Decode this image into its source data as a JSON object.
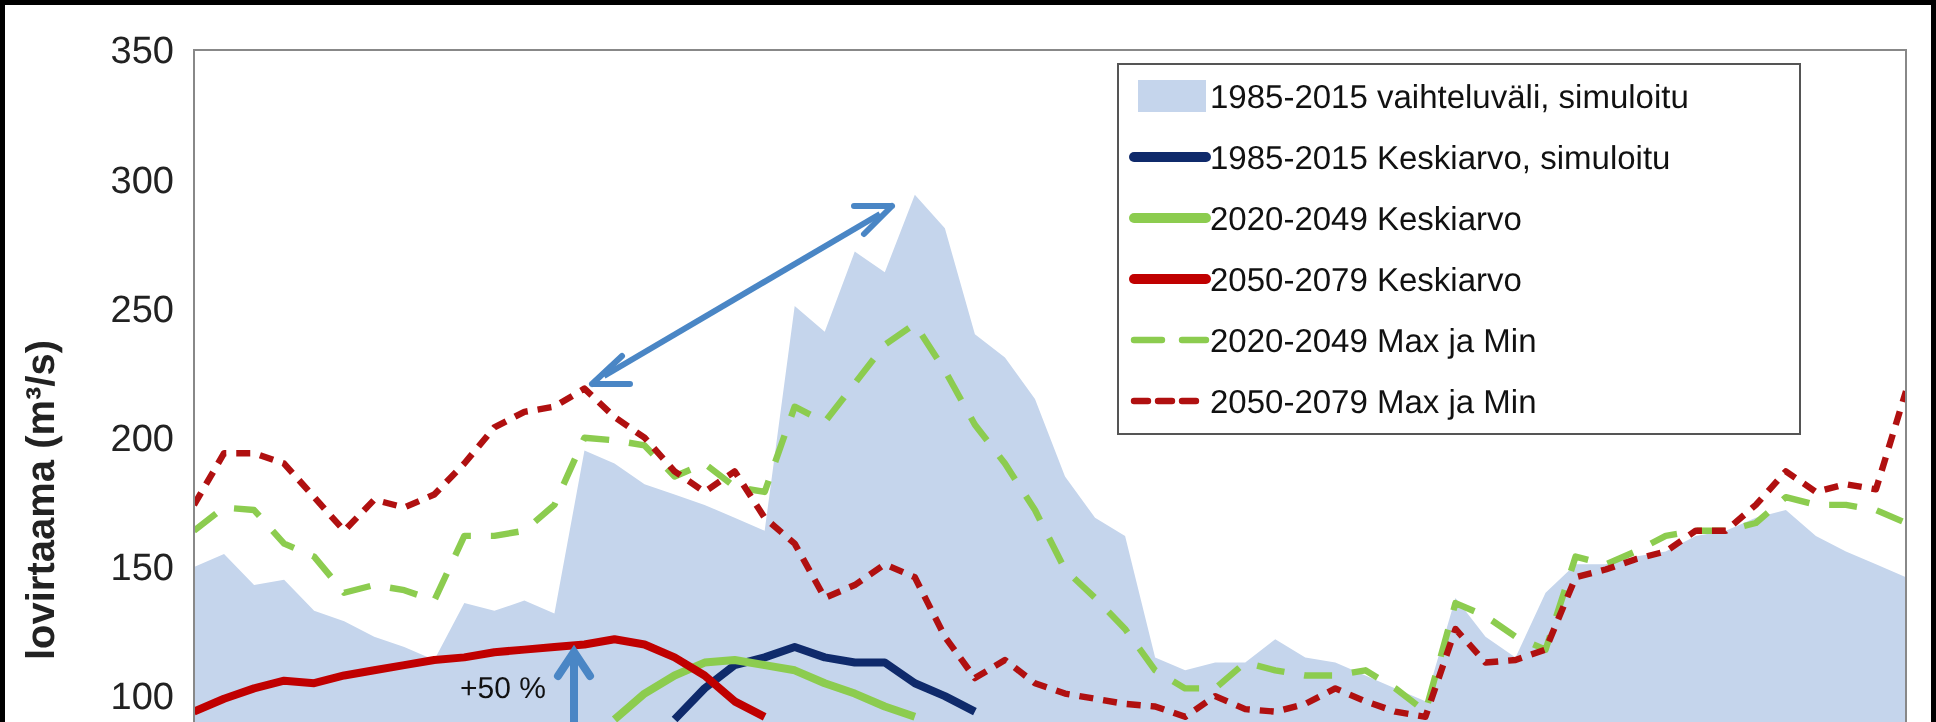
{
  "chart_data": {
    "type": "line",
    "ylabel": "lovirtaama (m³/s)",
    "categories": [
      null,
      null,
      null,
      null,
      null,
      null,
      null,
      null,
      null,
      null,
      null,
      null,
      null,
      null,
      null,
      null,
      null,
      null,
      null,
      null,
      null,
      null,
      null,
      null,
      null,
      null,
      null,
      null,
      null,
      null,
      null,
      null,
      null,
      null,
      null,
      null,
      null,
      null,
      null,
      null,
      null,
      null,
      null,
      null,
      null,
      null,
      null,
      null,
      null,
      null,
      null,
      null,
      null,
      null,
      null,
      null,
      null,
      null
    ],
    "ylim": [
      90,
      350
    ],
    "yticks": [
      100,
      150,
      200,
      250,
      300,
      350
    ],
    "grid": false,
    "legend": "top right",
    "annotations": [
      "+50 %"
    ],
    "series": [
      {
        "name": "1985-2015 vaihteluväli, simuloitu",
        "type": "area",
        "color": "#c5d5ec",
        "values": [
          150,
          155,
          143,
          145,
          133,
          129,
          123,
          119,
          114,
          136,
          133,
          137,
          132,
          195,
          190,
          182,
          178,
          174,
          169,
          164,
          251,
          241,
          272,
          264,
          294,
          281,
          240,
          231,
          215,
          185,
          169,
          162,
          115,
          110,
          113,
          113,
          122,
          115,
          113,
          108,
          103,
          98,
          138,
          123,
          115,
          140,
          151,
          151,
          154,
          156,
          162,
          164,
          169,
          172,
          162,
          156,
          151,
          146
        ]
      },
      {
        "name": "1985-2015 Keskiarvo, simuloitu",
        "line_style": "solid",
        "color": "#0f2a6b",
        "values": [
          null,
          null,
          null,
          null,
          null,
          null,
          null,
          null,
          null,
          null,
          null,
          null,
          null,
          null,
          null,
          null,
          91,
          103,
          112,
          115,
          119,
          115,
          113,
          113,
          105,
          100,
          94,
          null,
          null,
          null,
          null,
          null,
          null,
          null,
          null,
          null,
          null,
          null,
          null,
          null,
          null,
          null,
          null,
          null,
          null,
          null,
          null,
          null,
          null,
          null,
          null,
          null,
          null,
          null,
          null,
          null,
          null,
          null
        ]
      },
      {
        "name": "2020-2049 Keskiarvo",
        "line_style": "solid",
        "color": "#8ccc4f",
        "values": [
          null,
          null,
          null,
          null,
          null,
          null,
          null,
          null,
          null,
          null,
          null,
          null,
          null,
          null,
          91,
          101,
          108,
          113,
          114,
          112,
          110,
          105,
          101,
          96,
          92,
          null,
          null,
          null,
          null,
          null,
          null,
          null,
          null,
          null,
          null,
          null,
          null,
          null,
          null,
          null,
          null,
          null,
          null,
          null,
          null,
          null,
          null,
          null,
          null,
          null,
          null,
          null,
          null,
          null,
          null,
          null,
          null,
          null
        ]
      },
      {
        "name": "2050-2079 Keskiarvo",
        "line_style": "solid",
        "color": "#c00000",
        "values": [
          94,
          99,
          103,
          106,
          105,
          108,
          110,
          112,
          114,
          115,
          117,
          118,
          119,
          120,
          122,
          120,
          115,
          108,
          98,
          92,
          null,
          null,
          null,
          null,
          null,
          null,
          null,
          null,
          null,
          null,
          null,
          null,
          null,
          null,
          null,
          null,
          null,
          null,
          null,
          null,
          null,
          null,
          null,
          null,
          null,
          null,
          null,
          null,
          null,
          null,
          null,
          null,
          null,
          null,
          null,
          null,
          null,
          null
        ]
      },
      {
        "name": "2020-2049 Max ja Min",
        "line_style": "dashed",
        "color": "#8ccc4f",
        "values": [
          164,
          173,
          172,
          159,
          154,
          140,
          143,
          141,
          137,
          162,
          162,
          164,
          174,
          200,
          199,
          197,
          185,
          190,
          181,
          179,
          212,
          206,
          221,
          236,
          244,
          226,
          205,
          190,
          172,
          149,
          138,
          126,
          110,
          103,
          103,
          113,
          110,
          108,
          108,
          110,
          103,
          94,
          136,
          131,
          123,
          118,
          154,
          151,
          156,
          162,
          164,
          164,
          167,
          177,
          174,
          174,
          172,
          167
        ]
      },
      {
        "name": "2050-2079 Max ja Min",
        "line_style": "dotted",
        "color": "#b01010",
        "values": [
          174,
          194,
          194,
          190,
          177,
          164,
          176,
          173,
          178,
          190,
          204,
          210,
          212,
          219,
          208,
          200,
          187,
          179,
          187,
          169,
          159,
          138,
          143,
          151,
          146,
          123,
          107,
          114,
          105,
          101,
          99,
          97,
          96,
          92,
          100,
          95,
          94,
          97,
          103,
          98,
          94,
          92,
          126,
          113,
          114,
          118,
          146,
          149,
          153,
          156,
          164,
          164,
          174,
          187,
          179,
          182,
          180,
          218
        ]
      }
    ]
  }
}
